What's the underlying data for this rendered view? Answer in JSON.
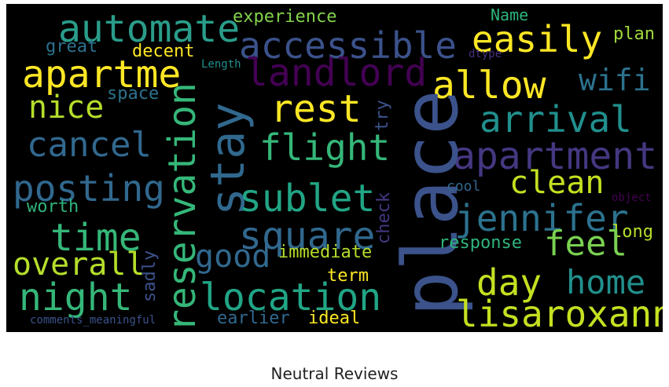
{
  "caption": "Neutral Reviews",
  "words": {
    "automate": "automate",
    "experience": "experience",
    "name": "Name",
    "accessible": "accessible",
    "easily": "easily",
    "plan": "plan",
    "great": "great",
    "decent": "decent",
    "dtype": "dtype",
    "apartme": "apartme",
    "length": "Length",
    "landlord": "landlord",
    "allow": "allow",
    "wifi": "wifi",
    "nice": "nice",
    "space": "space",
    "rest": "rest",
    "arrival": "arrival",
    "cancel": "cancel",
    "flight": "flight",
    "apartment": "apartment",
    "stay": "stay",
    "reservation": "reservation",
    "try": "try",
    "place": "place",
    "posting": "posting",
    "sublet": "sublet",
    "clean": "clean",
    "cool": "cool",
    "check": "check",
    "worth": "worth",
    "jennifer": "jennifer",
    "object": "object",
    "time": "time",
    "square": "square",
    "long": "long",
    "feel": "feel",
    "overall": "overall",
    "good": "good",
    "immediate": "immediate",
    "response": "response",
    "sadly": "sadly",
    "night": "night",
    "day": "day",
    "home": "home",
    "term": "term",
    "location": "location",
    "lisaroxanne": "lisaroxanne",
    "comments_meaningful": "comments_meaningful",
    "earlier": "earlier",
    "ideal": "ideal"
  }
}
